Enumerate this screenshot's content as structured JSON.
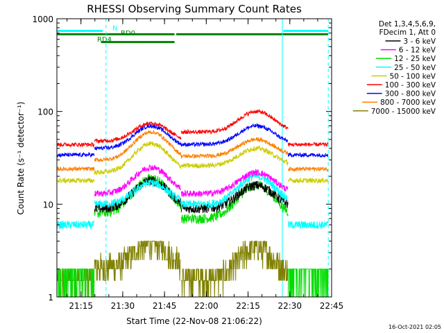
{
  "chart_data": {
    "type": "line",
    "title": "RHESSI Observing Summary Count Rates",
    "xlabel": "Start Time (22-Nov-08 21:06:22)",
    "ylabel": "Count Rate (s⁻¹ detector⁻¹)",
    "yscale": "log",
    "ylim": [
      1,
      1000
    ],
    "xlim_minutes": [
      21.106,
      22.75
    ],
    "x_ticks": [
      "21:15",
      "21:30",
      "21:45",
      "22:00",
      "22:15",
      "22:30",
      "22:45"
    ],
    "x_tick_hours": [
      21.25,
      21.5,
      21.75,
      22.0,
      22.25,
      22.5,
      22.75
    ],
    "y_ticks": [
      "1",
      "10",
      "100",
      "1000"
    ],
    "y_tick_values": [
      1,
      10,
      100,
      1000
    ],
    "grid": false,
    "legend": {
      "placement": "top-right",
      "header": [
        "Det 1,3,4,5,6,9,",
        "FDecim 1, Att 0"
      ]
    },
    "footer_timestamp": "16-Oct-2021 02:05",
    "flags": [
      {
        "label": "N",
        "color": "#00ffff",
        "segments": [
          [
            21.106,
            21.38
          ],
          [
            22.46,
            22.73
          ]
        ],
        "level": 740
      },
      {
        "label": "RD0",
        "color": "#008000",
        "segments": [
          [
            21.106,
            21.81
          ],
          [
            21.82,
            22.73
          ]
        ],
        "level": 680
      },
      {
        "label": "RD4",
        "color": "#008000",
        "segments": [
          [
            21.37,
            21.81
          ]
        ],
        "level": 560
      }
    ],
    "vertical_lines": [
      {
        "x": 21.4,
        "style": "dashed",
        "color": "#00ffff"
      },
      {
        "x": 22.455,
        "style": "solid",
        "color": "#00ffff"
      },
      {
        "x": 22.73,
        "style": "dashed",
        "color": "#00ffff"
      }
    ],
    "series": [
      {
        "name": "3 - 6 keV",
        "color": "#000000"
      },
      {
        "name": "6 - 12 keV",
        "color": "#ff00ff"
      },
      {
        "name": "12 - 25 keV",
        "color": "#00dd00"
      },
      {
        "name": "25 - 50 keV",
        "color": "#00ffff"
      },
      {
        "name": "50 - 100 keV",
        "color": "#cccc00"
      },
      {
        "name": "100 - 300 keV",
        "color": "#ff0000"
      },
      {
        "name": "300 - 800 keV",
        "color": "#0000ff"
      },
      {
        "name": "800 - 7000 keV",
        "color": "#ff8000"
      },
      {
        "name": "7000 - 15000 keV",
        "color": "#808000"
      }
    ],
    "approx_levels_per_segment": {
      "segments_hours": [
        [
          21.106,
          21.33
        ],
        [
          21.33,
          21.85
        ],
        [
          21.85,
          22.49
        ],
        [
          22.49,
          22.73
        ]
      ],
      "series_levels": [
        {
          "name": "3 - 6 keV",
          "base": [
            null,
            9,
            9,
            null
          ],
          "peak": [
            null,
            18,
            16,
            null
          ]
        },
        {
          "name": "6 - 12 keV",
          "base": [
            null,
            13,
            13,
            null
          ],
          "peak": [
            null,
            25,
            22,
            null
          ]
        },
        {
          "name": "12 - 25 keV",
          "base": [
            1.7,
            8,
            7,
            1.7
          ],
          "peak": [
            null,
            19,
            16,
            null
          ]
        },
        {
          "name": "25 - 50 keV",
          "base": [
            6,
            10,
            10,
            6
          ],
          "peak": [
            null,
            17,
            20,
            null
          ]
        },
        {
          "name": "50 - 100 keV",
          "base": [
            18,
            22,
            26,
            18
          ],
          "peak": [
            null,
            45,
            40,
            null
          ]
        },
        {
          "name": "100 - 300 keV",
          "base": [
            44,
            48,
            60,
            44
          ],
          "peak": [
            null,
            75,
            100,
            null
          ]
        },
        {
          "name": "300 - 800 keV",
          "base": [
            34,
            40,
            44,
            34
          ],
          "peak": [
            null,
            70,
            70,
            null
          ]
        },
        {
          "name": "800 - 7000 keV",
          "base": [
            24,
            30,
            33,
            24
          ],
          "peak": [
            null,
            60,
            50,
            null
          ]
        },
        {
          "name": "7000 - 15000 keV",
          "base": [
            1.5,
            2,
            1.5,
            null
          ],
          "peak": [
            null,
            3.6,
            3.2,
            null
          ]
        }
      ]
    }
  }
}
